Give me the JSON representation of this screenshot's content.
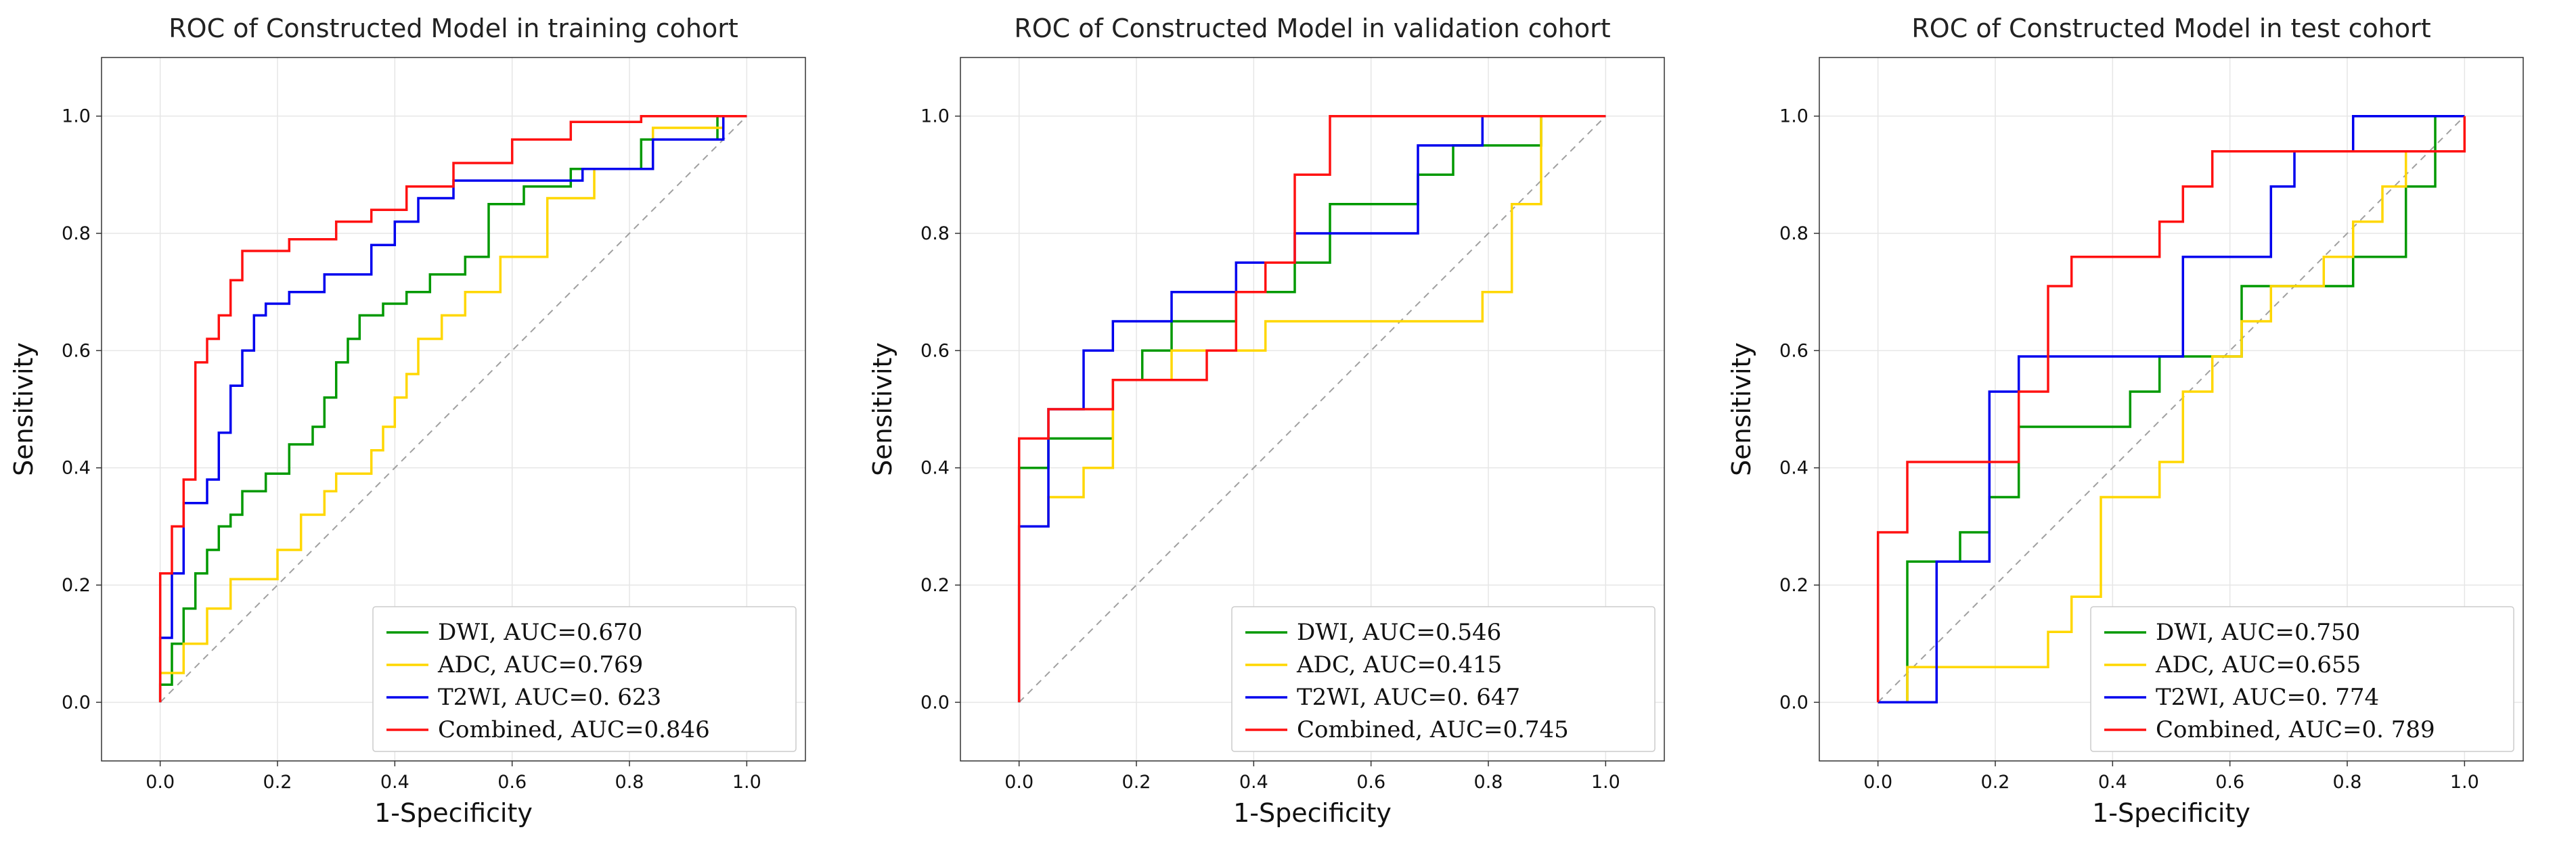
{
  "colors": {
    "DWI": "#009900",
    "ADC": "#ffd700",
    "T2WI": "#0000ee",
    "Combined": "#ff1111",
    "diagonal": "#a0a0a0"
  },
  "chart_data": [
    {
      "type": "line",
      "title": "ROC of Constructed Model in training cohort",
      "xlabel": "1-Specificity",
      "ylabel": "Sensitivity",
      "xlim": [
        -0.1,
        1.1
      ],
      "ylim": [
        -0.1,
        1.1
      ],
      "xticks": [
        "0.0",
        "0.2",
        "0.4",
        "0.6",
        "0.8",
        "1.0"
      ],
      "yticks": [
        "0.0",
        "0.2",
        "0.4",
        "0.6",
        "0.8",
        "1.0"
      ],
      "legend": "lower-right",
      "series": [
        {
          "name": "DWI",
          "label": "DWI, AUC=0.670",
          "x": [
            0,
            0,
            0.02,
            0.02,
            0.04,
            0.04,
            0.06,
            0.06,
            0.08,
            0.08,
            0.1,
            0.1,
            0.12,
            0.12,
            0.14,
            0.14,
            0.18,
            0.18,
            0.22,
            0.22,
            0.26,
            0.26,
            0.28,
            0.28,
            0.3,
            0.3,
            0.32,
            0.32,
            0.34,
            0.34,
            0.38,
            0.38,
            0.42,
            0.42,
            0.46,
            0.46,
            0.52,
            0.52,
            0.56,
            0.56,
            0.62,
            0.62,
            0.7,
            0.7,
            0.82,
            0.82,
            0.95,
            0.95,
            1.0
          ],
          "y": [
            0,
            0.03,
            0.03,
            0.1,
            0.1,
            0.16,
            0.16,
            0.22,
            0.22,
            0.26,
            0.26,
            0.3,
            0.3,
            0.32,
            0.32,
            0.36,
            0.36,
            0.39,
            0.39,
            0.44,
            0.44,
            0.47,
            0.47,
            0.52,
            0.52,
            0.58,
            0.58,
            0.62,
            0.62,
            0.66,
            0.66,
            0.68,
            0.68,
            0.7,
            0.7,
            0.73,
            0.73,
            0.76,
            0.76,
            0.85,
            0.85,
            0.88,
            0.88,
            0.91,
            0.91,
            0.96,
            0.96,
            1.0,
            1.0
          ]
        },
        {
          "name": "ADC",
          "label": "ADC, AUC=0.769",
          "x": [
            0,
            0,
            0.04,
            0.04,
            0.08,
            0.08,
            0.12,
            0.12,
            0.2,
            0.2,
            0.24,
            0.24,
            0.28,
            0.28,
            0.3,
            0.3,
            0.36,
            0.36,
            0.38,
            0.38,
            0.4,
            0.4,
            0.42,
            0.42,
            0.44,
            0.44,
            0.48,
            0.48,
            0.52,
            0.52,
            0.58,
            0.58,
            0.66,
            0.66,
            0.74,
            0.74,
            0.84,
            0.84,
            0.96,
            0.96,
            1.0
          ],
          "y": [
            0,
            0.05,
            0.05,
            0.1,
            0.1,
            0.16,
            0.16,
            0.21,
            0.21,
            0.26,
            0.26,
            0.32,
            0.32,
            0.36,
            0.36,
            0.39,
            0.39,
            0.43,
            0.43,
            0.47,
            0.47,
            0.52,
            0.52,
            0.56,
            0.56,
            0.62,
            0.62,
            0.66,
            0.66,
            0.7,
            0.7,
            0.76,
            0.76,
            0.86,
            0.86,
            0.91,
            0.91,
            0.98,
            0.98,
            1.0,
            1.0
          ]
        },
        {
          "name": "T2WI",
          "label": "T2WI, AUC=0. 623",
          "x": [
            0,
            0,
            0.02,
            0.02,
            0.04,
            0.04,
            0.08,
            0.08,
            0.1,
            0.1,
            0.12,
            0.12,
            0.14,
            0.14,
            0.16,
            0.16,
            0.18,
            0.18,
            0.22,
            0.22,
            0.28,
            0.28,
            0.36,
            0.36,
            0.4,
            0.4,
            0.44,
            0.44,
            0.5,
            0.5,
            0.6,
            0.6,
            0.72,
            0.72,
            0.84,
            0.84,
            0.96,
            0.96,
            1.0
          ],
          "y": [
            0,
            0.11,
            0.11,
            0.22,
            0.22,
            0.34,
            0.34,
            0.38,
            0.38,
            0.46,
            0.46,
            0.54,
            0.54,
            0.6,
            0.6,
            0.66,
            0.66,
            0.68,
            0.68,
            0.7,
            0.7,
            0.73,
            0.73,
            0.78,
            0.78,
            0.82,
            0.82,
            0.86,
            0.86,
            0.89,
            0.89,
            0.89,
            0.89,
            0.91,
            0.91,
            0.96,
            0.96,
            1.0,
            1.0
          ]
        },
        {
          "name": "Combined",
          "label": "Combined, AUC=0.846",
          "x": [
            0,
            0,
            0.02,
            0.02,
            0.04,
            0.04,
            0.06,
            0.06,
            0.08,
            0.08,
            0.1,
            0.1,
            0.12,
            0.12,
            0.14,
            0.14,
            0.22,
            0.22,
            0.3,
            0.3,
            0.36,
            0.36,
            0.42,
            0.42,
            0.5,
            0.5,
            0.6,
            0.6,
            0.7,
            0.7,
            0.82,
            0.82,
            0.92,
            0.92,
            1.0
          ],
          "y": [
            0,
            0.22,
            0.22,
            0.3,
            0.3,
            0.38,
            0.38,
            0.58,
            0.58,
            0.62,
            0.62,
            0.66,
            0.66,
            0.72,
            0.72,
            0.77,
            0.77,
            0.79,
            0.79,
            0.82,
            0.82,
            0.84,
            0.84,
            0.88,
            0.88,
            0.92,
            0.92,
            0.96,
            0.96,
            0.99,
            0.99,
            1.0,
            1.0,
            1.0,
            1.0
          ]
        }
      ]
    },
    {
      "type": "line",
      "title": "ROC of Constructed Model in validation cohort",
      "xlabel": "1-Specificity",
      "ylabel": "Sensitivity",
      "xlim": [
        -0.1,
        1.1
      ],
      "ylim": [
        -0.1,
        1.1
      ],
      "xticks": [
        "0.0",
        "0.2",
        "0.4",
        "0.6",
        "0.8",
        "1.0"
      ],
      "yticks": [
        "0.0",
        "0.2",
        "0.4",
        "0.6",
        "0.8",
        "1.0"
      ],
      "legend": "lower-right",
      "series": [
        {
          "name": "DWI",
          "label": "DWI, AUC=0.546",
          "x": [
            0,
            0,
            0.05,
            0.05,
            0.16,
            0.16,
            0.21,
            0.21,
            0.26,
            0.26,
            0.37,
            0.37,
            0.47,
            0.47,
            0.53,
            0.53,
            0.68,
            0.68,
            0.74,
            0.74,
            0.89,
            0.89,
            1.0
          ],
          "y": [
            0,
            0.4,
            0.4,
            0.45,
            0.45,
            0.55,
            0.55,
            0.6,
            0.6,
            0.65,
            0.65,
            0.7,
            0.7,
            0.75,
            0.75,
            0.85,
            0.85,
            0.9,
            0.9,
            0.95,
            0.95,
            1.0,
            1.0
          ]
        },
        {
          "name": "ADC",
          "label": "ADC, AUC=0.415",
          "x": [
            0,
            0,
            0.05,
            0.05,
            0.11,
            0.11,
            0.16,
            0.16,
            0.26,
            0.26,
            0.42,
            0.42,
            0.58,
            0.58,
            0.79,
            0.79,
            0.84,
            0.84,
            0.89,
            0.89,
            1.0
          ],
          "y": [
            0,
            0.3,
            0.3,
            0.35,
            0.35,
            0.4,
            0.4,
            0.55,
            0.55,
            0.6,
            0.6,
            0.65,
            0.65,
            0.65,
            0.65,
            0.7,
            0.7,
            0.85,
            0.85,
            1.0,
            1.0
          ]
        },
        {
          "name": "T2WI",
          "label": "T2WI, AUC=0. 647",
          "x": [
            0,
            0,
            0.05,
            0.05,
            0.11,
            0.11,
            0.16,
            0.16,
            0.26,
            0.26,
            0.37,
            0.37,
            0.47,
            0.47,
            0.68,
            0.68,
            0.79,
            0.79,
            1.0
          ],
          "y": [
            0,
            0.3,
            0.3,
            0.5,
            0.5,
            0.6,
            0.6,
            0.65,
            0.65,
            0.7,
            0.7,
            0.75,
            0.75,
            0.8,
            0.8,
            0.95,
            0.95,
            1.0,
            1.0
          ]
        },
        {
          "name": "Combined",
          "label": "Combined, AUC=0.745",
          "x": [
            0,
            0,
            0.05,
            0.05,
            0.16,
            0.16,
            0.32,
            0.32,
            0.37,
            0.37,
            0.42,
            0.42,
            0.47,
            0.47,
            0.53,
            0.53,
            1.0
          ],
          "y": [
            0,
            0.45,
            0.45,
            0.5,
            0.5,
            0.55,
            0.55,
            0.6,
            0.6,
            0.7,
            0.7,
            0.75,
            0.75,
            0.9,
            0.9,
            1.0,
            1.0
          ]
        }
      ]
    },
    {
      "type": "line",
      "title": "ROC of Constructed Model in test cohort",
      "xlabel": "1-Specificity",
      "ylabel": "Sensitivity",
      "xlim": [
        -0.1,
        1.1
      ],
      "ylim": [
        -0.1,
        1.1
      ],
      "xticks": [
        "0.0",
        "0.2",
        "0.4",
        "0.6",
        "0.8",
        "1.0"
      ],
      "yticks": [
        "0.0",
        "0.2",
        "0.4",
        "0.6",
        "0.8",
        "1.0"
      ],
      "legend": "lower-right",
      "series": [
        {
          "name": "DWI",
          "label": "DWI, AUC=0.750",
          "x": [
            0,
            0.05,
            0.05,
            0.1,
            0.1,
            0.14,
            0.14,
            0.19,
            0.19,
            0.24,
            0.24,
            0.43,
            0.43,
            0.48,
            0.48,
            0.52,
            0.52,
            0.57,
            0.57,
            0.62,
            0.62,
            0.81,
            0.81,
            0.86,
            0.86,
            0.9,
            0.9,
            0.95,
            0.95,
            1.0
          ],
          "y": [
            0,
            0,
            0.24,
            0.24,
            0.24,
            0.24,
            0.29,
            0.29,
            0.35,
            0.35,
            0.47,
            0.47,
            0.53,
            0.53,
            0.59,
            0.59,
            0.59,
            0.59,
            0.59,
            0.59,
            0.71,
            0.71,
            0.76,
            0.76,
            0.76,
            0.76,
            0.88,
            0.88,
            1.0,
            1.0
          ]
        },
        {
          "name": "ADC",
          "label": "ADC, AUC=0.655",
          "x": [
            0,
            0.05,
            0.05,
            0.29,
            0.29,
            0.33,
            0.33,
            0.38,
            0.38,
            0.48,
            0.48,
            0.52,
            0.52,
            0.57,
            0.57,
            0.62,
            0.62,
            0.67,
            0.67,
            0.76,
            0.76,
            0.81,
            0.81,
            0.86,
            0.86,
            0.9,
            0.9,
            1.0,
            1.0
          ],
          "y": [
            0,
            0,
            0.06,
            0.06,
            0.12,
            0.12,
            0.18,
            0.18,
            0.35,
            0.35,
            0.41,
            0.41,
            0.53,
            0.53,
            0.59,
            0.59,
            0.65,
            0.65,
            0.71,
            0.71,
            0.76,
            0.76,
            0.82,
            0.82,
            0.88,
            0.88,
            0.94,
            0.94,
            1.0
          ]
        },
        {
          "name": "T2WI",
          "label": "T2WI, AUC=0. 774",
          "x": [
            0,
            0.1,
            0.1,
            0.19,
            0.19,
            0.24,
            0.24,
            0.52,
            0.52,
            0.67,
            0.67,
            0.71,
            0.71,
            0.81,
            0.81,
            1.0,
            1.0
          ],
          "y": [
            0,
            0,
            0.24,
            0.24,
            0.53,
            0.53,
            0.59,
            0.59,
            0.76,
            0.76,
            0.88,
            0.88,
            0.94,
            0.94,
            1.0,
            1.0,
            1.0
          ]
        },
        {
          "name": "Combined",
          "label": "Combined, AUC=0. 789",
          "x": [
            0,
            0,
            0.05,
            0.05,
            0.24,
            0.24,
            0.29,
            0.29,
            0.33,
            0.33,
            0.48,
            0.48,
            0.52,
            0.52,
            0.57,
            0.57,
            1.0,
            1.0
          ],
          "y": [
            0,
            0.29,
            0.29,
            0.41,
            0.41,
            0.53,
            0.53,
            0.71,
            0.71,
            0.76,
            0.76,
            0.82,
            0.82,
            0.88,
            0.88,
            0.94,
            0.94,
            1.0
          ]
        }
      ]
    }
  ]
}
